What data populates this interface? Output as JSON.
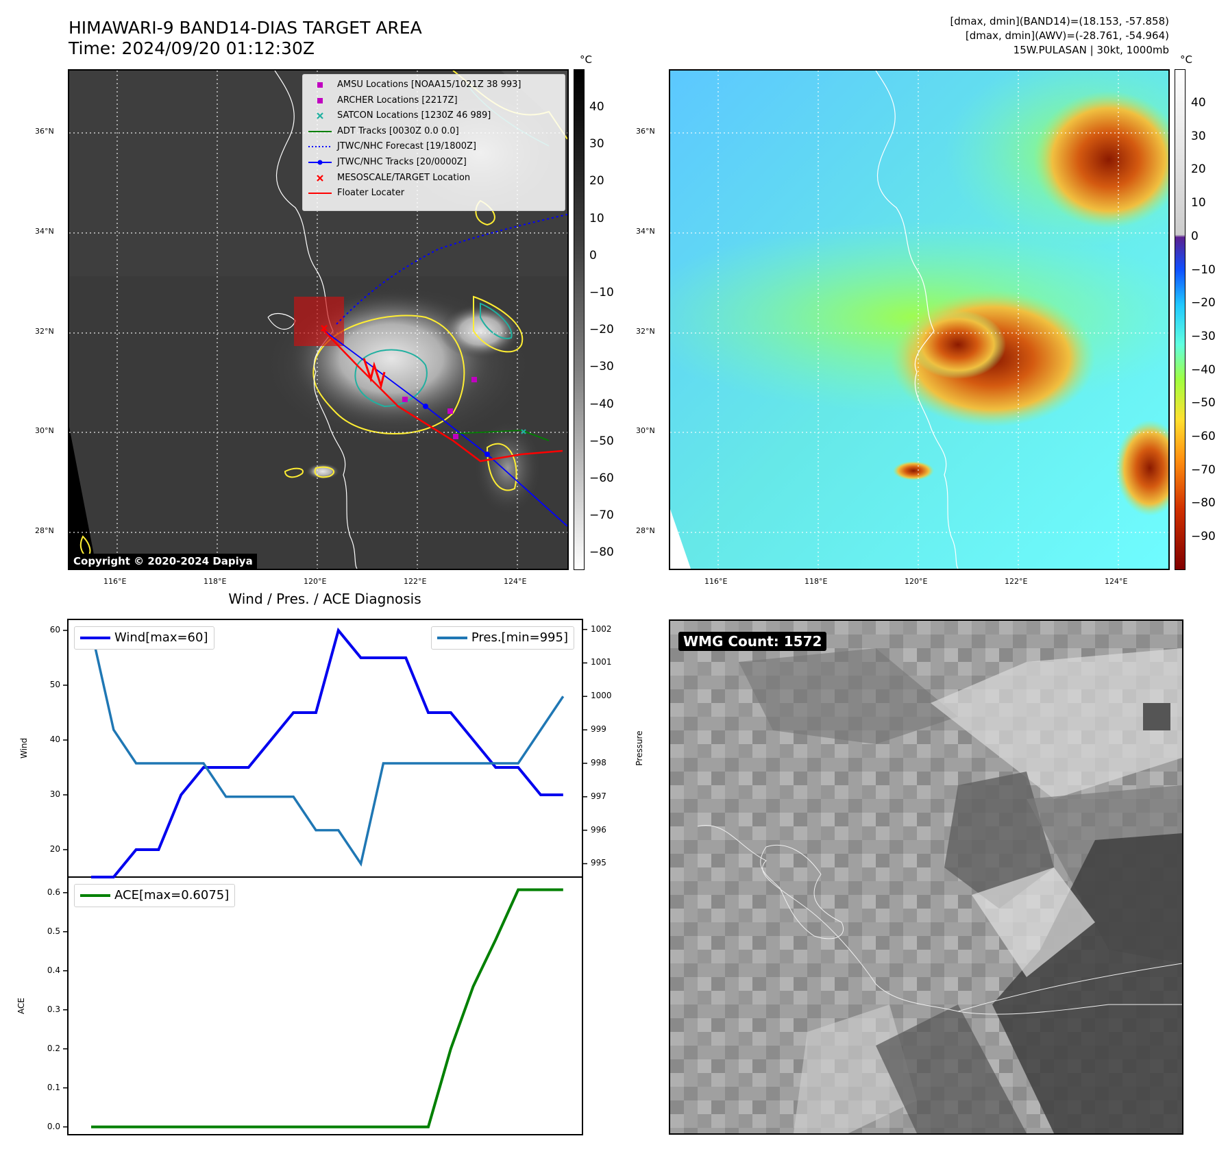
{
  "header": {
    "title_line1": "HIMAWARI-9 BAND14-DIAS TARGET AREA",
    "title_line2": "Time: 2024/09/20 01:12:30Z",
    "info_line1": "[dmax, dmin](BAND14)=(18.153, -57.858)",
    "info_line2": "[dmax, dmin](AWV)=(-28.761, -54.964)",
    "info_line3": "15W.PULASAN | 30kt, 1000mb"
  },
  "map": {
    "lat_labels": [
      "36°N",
      "34°N",
      "32°N",
      "30°N",
      "28°N"
    ],
    "lon_labels": [
      "116°E",
      "118°E",
      "120°E",
      "122°E",
      "124°E"
    ],
    "copyright": "Copyright © 2020-2024 Dapiya",
    "unit": "°C",
    "legend": [
      {
        "label": "AMSU Locations [NOAA15/1021Z 38 993]",
        "symbol": "square",
        "color": "#c000c0"
      },
      {
        "label": "ARCHER Locations [2217Z]",
        "symbol": "square",
        "color": "#c000c0"
      },
      {
        "label": "SATCON Locations [1230Z 46 989]",
        "symbol": "x",
        "color": "#20b0a0"
      },
      {
        "label": "ADT Tracks [0030Z 0.0 0.0]",
        "symbol": "line",
        "color": "#008000"
      },
      {
        "label": "JTWC/NHC Forecast [19/1800Z]",
        "symbol": "dotted",
        "color": "#0000ff"
      },
      {
        "label": "JTWC/NHC Tracks [20/0000Z]",
        "symbol": "line-dot",
        "color": "#0000ff"
      },
      {
        "label": "MESOSCALE/TARGET Location",
        "symbol": "x",
        "color": "#ff0000"
      },
      {
        "label": "Floater Locater",
        "symbol": "line",
        "color": "#ff0000"
      }
    ],
    "colorbar_left_ticks": [
      "40",
      "30",
      "20",
      "10",
      "0",
      "−10",
      "−20",
      "−30",
      "−40",
      "−50",
      "−60",
      "−70",
      "−80"
    ],
    "colorbar_right_ticks": [
      "40",
      "30",
      "20",
      "10",
      "0",
      "−10",
      "−20",
      "−30",
      "−40",
      "−50",
      "−60",
      "−70",
      "−80",
      "−90"
    ]
  },
  "chart_data": [
    {
      "type": "line",
      "title": "Wind / Pres. / ACE Diagnosis",
      "ylabel": "Wind",
      "ylim": [
        15,
        62
      ],
      "yticks": [
        20,
        30,
        40,
        50,
        60
      ],
      "legend": "Wind[max=60]",
      "color": "#0000ee",
      "series": [
        {
          "name": "Wind",
          "values": [
            15,
            15,
            20,
            20,
            30,
            35,
            35,
            35,
            40,
            45,
            45,
            60,
            55,
            55,
            55,
            45,
            45,
            40,
            35,
            35,
            30,
            30
          ]
        }
      ]
    },
    {
      "type": "line",
      "ylabel": "Pressure",
      "ylim": [
        994.6,
        1002.3
      ],
      "yticks": [
        995,
        996,
        997,
        998,
        999,
        1000,
        1001,
        1002
      ],
      "legend": "Pres.[min=995]",
      "color": "#1f77b4",
      "series": [
        {
          "name": "Pressure",
          "values": [
            1002,
            999,
            998,
            998,
            998,
            998,
            997,
            997,
            997,
            997,
            996,
            996,
            995,
            998,
            998,
            998,
            998,
            998,
            998,
            998,
            999,
            1000
          ]
        }
      ]
    },
    {
      "type": "line",
      "ylabel": "ACE",
      "ylim": [
        -0.02,
        0.64
      ],
      "yticks": [
        0.0,
        0.1,
        0.2,
        0.3,
        0.4,
        0.5,
        0.6
      ],
      "ytick_labels": [
        "0.0",
        "0.1",
        "0.2",
        "0.3",
        "0.4",
        "0.5",
        "0.6"
      ],
      "legend": "ACE[max=0.6075]",
      "color": "#008000",
      "series": [
        {
          "name": "ACE",
          "values": [
            0,
            0,
            0,
            0,
            0,
            0,
            0,
            0,
            0,
            0,
            0,
            0,
            0,
            0,
            0,
            0,
            0.2,
            0.36,
            0.48,
            0.6075,
            0.6075,
            0.6075
          ]
        }
      ]
    }
  ],
  "wmg": {
    "label": "WMG Count: 1572"
  }
}
